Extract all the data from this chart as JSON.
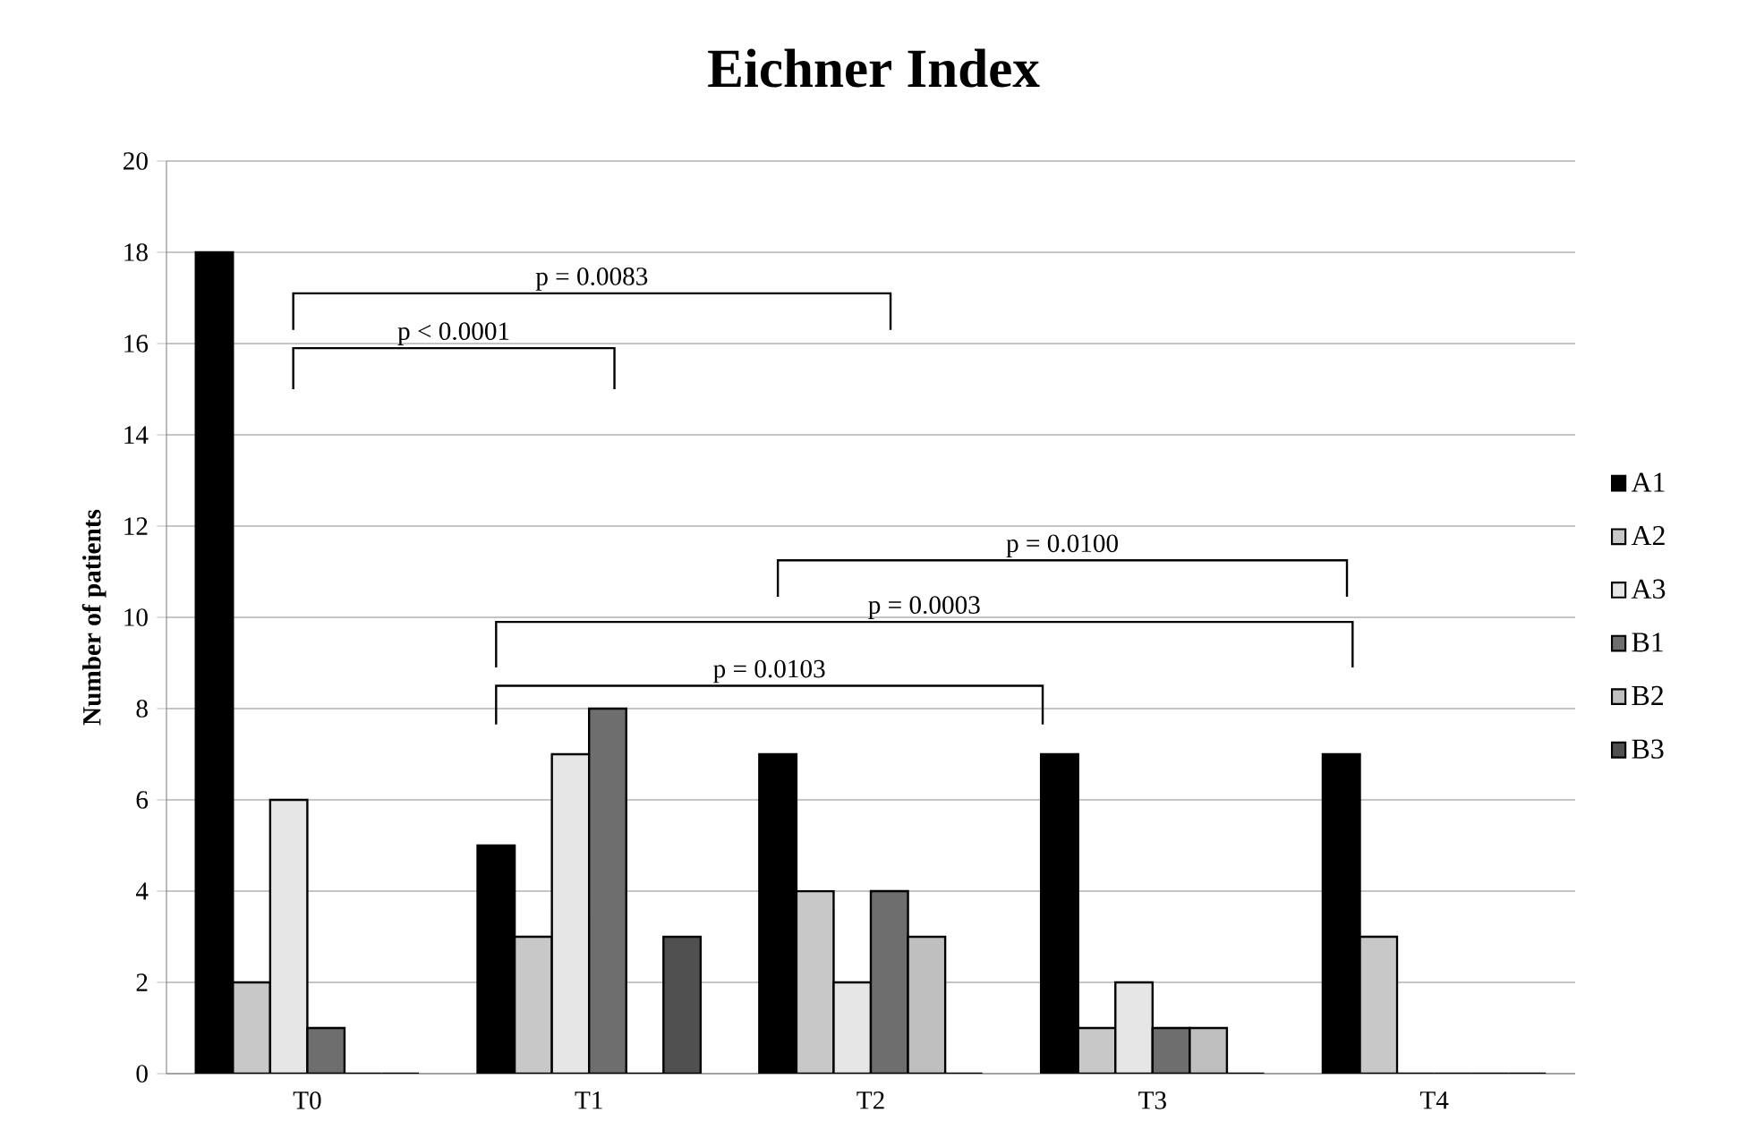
{
  "chart_data": {
    "type": "bar",
    "title": "Eichner Index",
    "ylabel": "Number of patients",
    "categories": [
      "T0",
      "T1",
      "T2",
      "T3",
      "T4"
    ],
    "series": [
      {
        "name": "A1",
        "color": "#000000",
        "values": [
          18,
          5,
          7,
          7,
          7
        ]
      },
      {
        "name": "A2",
        "color": "#c8c8c8",
        "values": [
          2,
          3,
          4,
          1,
          3
        ]
      },
      {
        "name": "A3",
        "color": "#e6e6e6",
        "values": [
          6,
          7,
          2,
          2,
          0
        ]
      },
      {
        "name": "B1",
        "color": "#6e6e6e",
        "values": [
          1,
          8,
          4,
          1,
          0
        ]
      },
      {
        "name": "B2",
        "color": "#bfbfbf",
        "values": [
          0,
          0,
          3,
          1,
          0
        ]
      },
      {
        "name": "B3",
        "color": "#505050",
        "values": [
          0,
          3,
          0,
          0,
          0
        ]
      }
    ],
    "ylim": [
      0,
      20
    ],
    "yticks": [
      0,
      2,
      4,
      6,
      8,
      10,
      12,
      14,
      16,
      18,
      20
    ],
    "grid": "y",
    "legend": "right",
    "annotations": [
      "p = 0.0083",
      "p < 0.0001",
      "p = 0.0100",
      "p = 0.0003",
      "p = 0.0103"
    ]
  }
}
